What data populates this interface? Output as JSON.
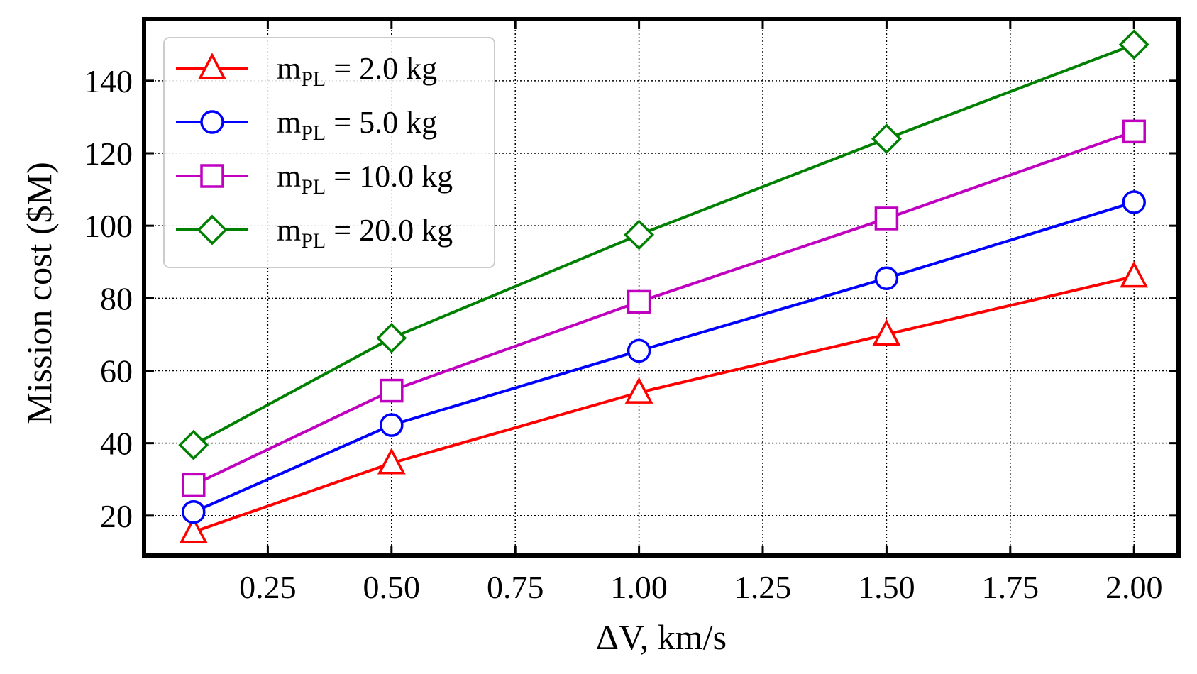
{
  "chart_data": {
    "type": "line",
    "title": "",
    "xlabel": "ΔV, km/s",
    "ylabel": "Mission cost ($M)",
    "xlim": [
      0.0,
      2.09
    ],
    "ylim": [
      9.0,
      157.0
    ],
    "xticks": [
      0.25,
      0.5,
      0.75,
      1.0,
      1.25,
      1.5,
      1.75,
      2.0
    ],
    "xtick_labels": [
      "0.25",
      "0.50",
      "0.75",
      "1.00",
      "1.25",
      "1.50",
      "1.75",
      "2.00"
    ],
    "yticks": [
      20,
      40,
      60,
      80,
      100,
      120,
      140
    ],
    "ytick_labels": [
      "20",
      "40",
      "60",
      "80",
      "100",
      "120",
      "140"
    ],
    "grid": true,
    "legend_position": "top-left",
    "x": [
      0.1,
      0.5,
      1.0,
      1.5,
      2.0
    ],
    "series": [
      {
        "name": "m_PL = 2.0 kg",
        "label_main": "m",
        "label_sub": "PL",
        "label_rest": " = 2.0 kg",
        "color": "#ff0000",
        "marker": "triangle",
        "values": [
          15.5,
          34.5,
          54.0,
          70.0,
          86.0
        ]
      },
      {
        "name": "m_PL = 5.0 kg",
        "label_main": "m",
        "label_sub": "PL",
        "label_rest": " = 5.0 kg",
        "color": "#0000ff",
        "marker": "circle",
        "values": [
          21.0,
          45.0,
          65.5,
          85.5,
          106.5
        ]
      },
      {
        "name": "m_PL = 10.0 kg",
        "label_main": "m",
        "label_sub": "PL",
        "label_rest": " = 10.0 kg",
        "color": "#bf00bf",
        "marker": "square",
        "values": [
          28.5,
          54.5,
          79.0,
          102.0,
          126.0
        ]
      },
      {
        "name": "m_PL = 20.0 kg",
        "label_main": "m",
        "label_sub": "PL",
        "label_rest": " = 20.0 kg",
        "color": "#008000",
        "marker": "diamond",
        "values": [
          39.5,
          69.0,
          97.5,
          124.0,
          150.0
        ]
      }
    ]
  }
}
